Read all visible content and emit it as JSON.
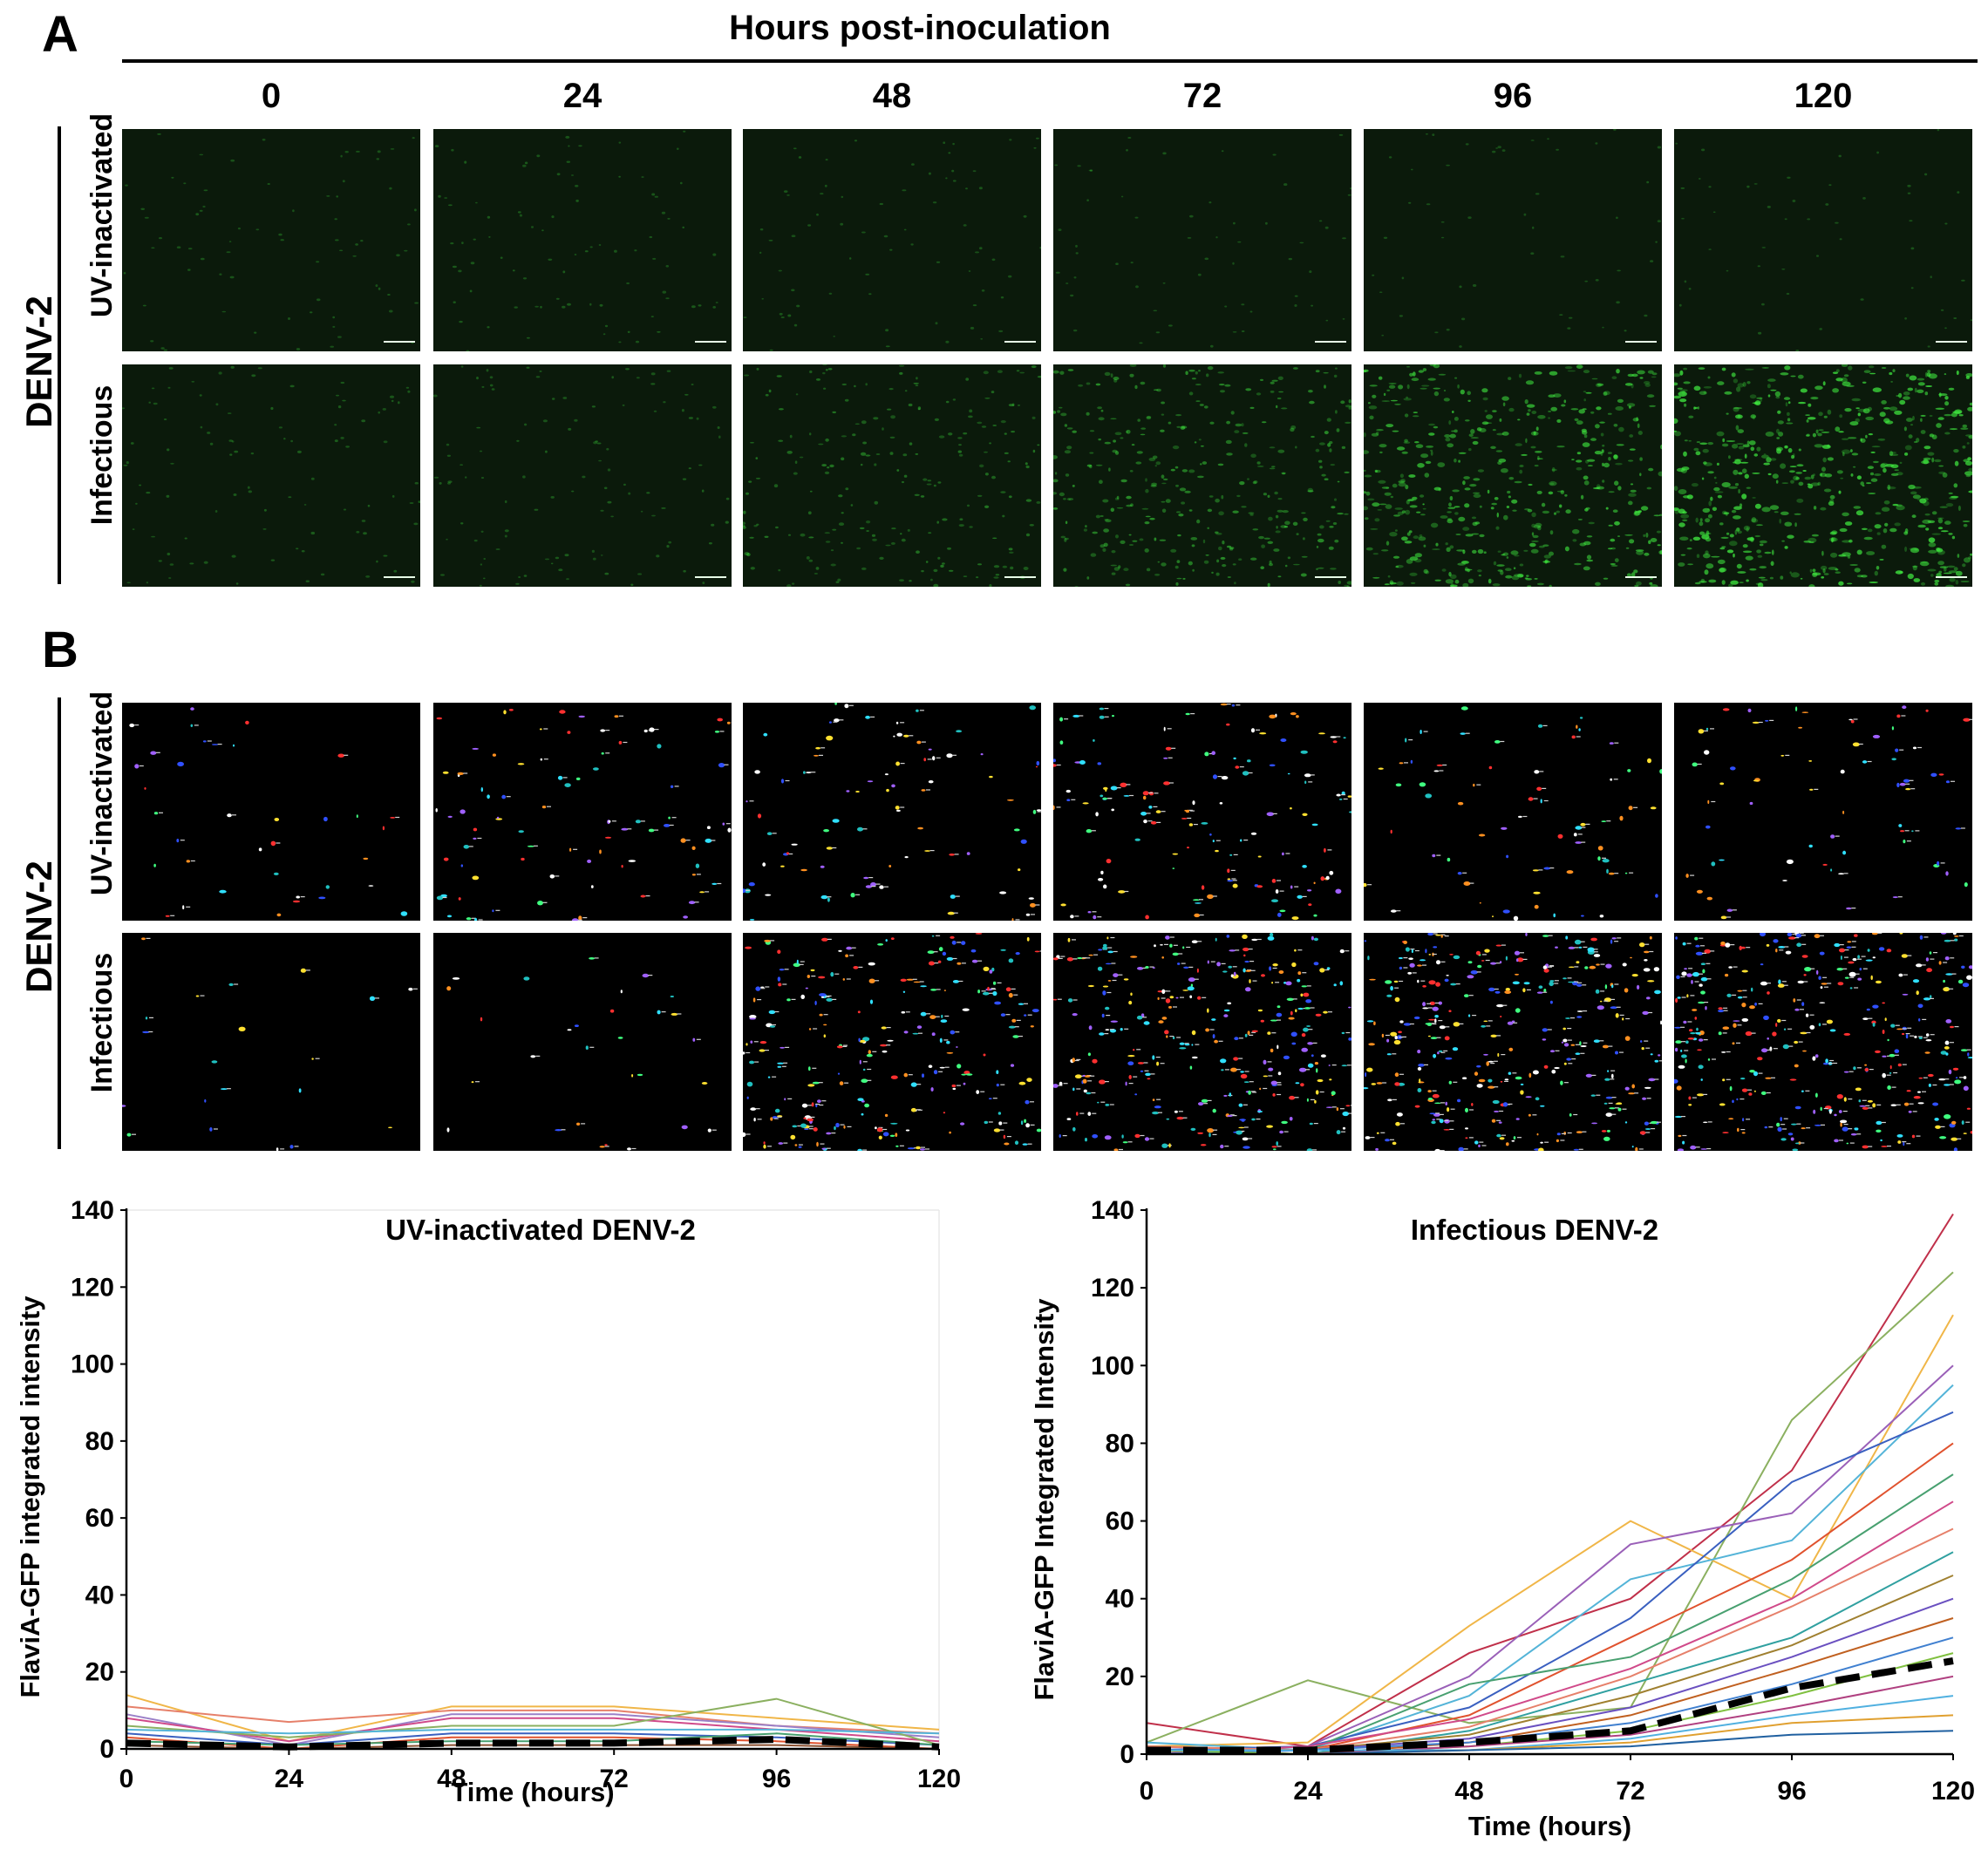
{
  "panel_a": {
    "letter": "A",
    "header": "Hours post-inoculation",
    "columns": [
      "0",
      "24",
      "48",
      "72",
      "96",
      "120"
    ],
    "virus_label": "DENV-2",
    "rows": [
      "UV-inactivated",
      "Infectious"
    ],
    "row_green_levels": [
      [
        0.08,
        0.1,
        0.08,
        0.06,
        0.05,
        0.05
      ],
      [
        0.12,
        0.14,
        0.3,
        0.5,
        0.75,
        0.9
      ]
    ],
    "colors": {
      "background": "#0b1a0b",
      "fluorescence": "#3fe83f"
    }
  },
  "panel_b": {
    "letter": "B",
    "virus_label": "DENV-2",
    "rows": [
      "UV-inactivated",
      "Infectious"
    ],
    "row_object_density": [
      [
        0.1,
        0.25,
        0.25,
        0.4,
        0.2,
        0.2
      ],
      [
        0.05,
        0.08,
        0.7,
        0.85,
        0.95,
        1.0
      ]
    ]
  },
  "chart_data": [
    {
      "type": "line",
      "title": "UV-inactivated DENV-2",
      "xlabel": "Time (hours)",
      "ylabel": "FlaviA-GFP integrated intensity",
      "x": [
        0,
        24,
        48,
        72,
        96,
        120
      ],
      "xlim": [
        0,
        120
      ],
      "ylim": [
        0,
        140
      ],
      "yticks": [
        0,
        20,
        40,
        60,
        80,
        100,
        120,
        140
      ],
      "xticks": [
        0,
        24,
        48,
        72,
        96,
        120
      ],
      "grid": false,
      "series": [
        {
          "values": [
            14,
            2,
            11,
            11,
            8,
            5
          ],
          "color": "#f0b648"
        },
        {
          "values": [
            11,
            7,
            10,
            10,
            6,
            4
          ],
          "color": "#e6806a"
        },
        {
          "values": [
            9,
            1,
            9,
            9,
            6,
            3
          ],
          "color": "#9a80c8"
        },
        {
          "values": [
            8,
            2,
            8,
            8,
            5,
            2
          ],
          "color": "#d04a8a"
        },
        {
          "values": [
            6,
            3,
            6,
            6,
            13,
            1
          ],
          "color": "#8bb060"
        },
        {
          "values": [
            5,
            4,
            5,
            5,
            5,
            4
          ],
          "color": "#54b4d8"
        },
        {
          "values": [
            4,
            1,
            4,
            4,
            3,
            1
          ],
          "color": "#3a60c0"
        },
        {
          "values": [
            3,
            0,
            3,
            3,
            2,
            0
          ],
          "color": "#e0522e"
        },
        {
          "values": [
            2,
            1,
            2,
            2,
            4,
            1
          ],
          "color": "#48a070"
        },
        {
          "values": [
            1,
            0,
            1,
            1,
            1,
            0
          ],
          "color": "#8a5030"
        }
      ],
      "mean": [
        1.5,
        0.5,
        1.5,
        1.5,
        2.5,
        0.5
      ]
    },
    {
      "type": "line",
      "title": "Infectious DENV-2",
      "xlabel": "Time (hours)",
      "ylabel": "FlaviA-GFP Integrated Intensity",
      "x": [
        0,
        24,
        48,
        72,
        96,
        120
      ],
      "xlim": [
        0,
        120
      ],
      "ylim": [
        0,
        140
      ],
      "yticks": [
        0,
        20,
        40,
        60,
        80,
        100,
        120,
        140
      ],
      "xticks": [
        0,
        24,
        48,
        72,
        96,
        120
      ],
      "grid": false,
      "series": [
        {
          "values": [
            8,
            2,
            26,
            40,
            73,
            139
          ],
          "color": "#c0304a"
        },
        {
          "values": [
            3,
            19,
            8,
            12,
            86,
            124
          ],
          "color": "#8bb060"
        },
        {
          "values": [
            2,
            3,
            33,
            60,
            40,
            113
          ],
          "color": "#f0b648"
        },
        {
          "values": [
            1,
            2,
            20,
            54,
            62,
            100
          ],
          "color": "#9a60b8"
        },
        {
          "values": [
            3,
            1,
            15,
            45,
            55,
            95
          ],
          "color": "#54b4d8"
        },
        {
          "values": [
            1,
            2,
            12,
            35,
            70,
            88
          ],
          "color": "#3a60c0"
        },
        {
          "values": [
            2,
            1,
            10,
            30,
            50,
            80
          ],
          "color": "#e0522e"
        },
        {
          "values": [
            1,
            1,
            18,
            25,
            45,
            72
          ],
          "color": "#48a070"
        },
        {
          "values": [
            0,
            2,
            9,
            22,
            40,
            65
          ],
          "color": "#d04a8a"
        },
        {
          "values": [
            2,
            1,
            7,
            20,
            38,
            58
          ],
          "color": "#e6806a"
        },
        {
          "values": [
            1,
            0,
            6,
            18,
            30,
            52
          ],
          "color": "#30a0a0"
        },
        {
          "values": [
            1,
            1,
            5,
            15,
            28,
            46
          ],
          "color": "#a08030"
        },
        {
          "values": [
            0,
            1,
            4,
            12,
            25,
            40
          ],
          "color": "#6a50c0"
        },
        {
          "values": [
            1,
            0,
            3,
            10,
            22,
            35
          ],
          "color": "#c06020"
        },
        {
          "values": [
            0,
            1,
            3,
            8,
            18,
            30
          ],
          "color": "#4080d0"
        },
        {
          "values": [
            1,
            0,
            2,
            6,
            15,
            26
          ],
          "color": "#80c040"
        },
        {
          "values": [
            0,
            0,
            2,
            5,
            12,
            20
          ],
          "color": "#b04080"
        },
        {
          "values": [
            1,
            1,
            1,
            4,
            10,
            15
          ],
          "color": "#50b0e0"
        },
        {
          "values": [
            0,
            0,
            1,
            3,
            8,
            10
          ],
          "color": "#e0a030"
        },
        {
          "values": [
            0,
            0,
            1,
            2,
            5,
            6
          ],
          "color": "#2060a0"
        }
      ],
      "mean": [
        1.0,
        1.0,
        3.0,
        6.0,
        17.0,
        24.0
      ]
    }
  ]
}
